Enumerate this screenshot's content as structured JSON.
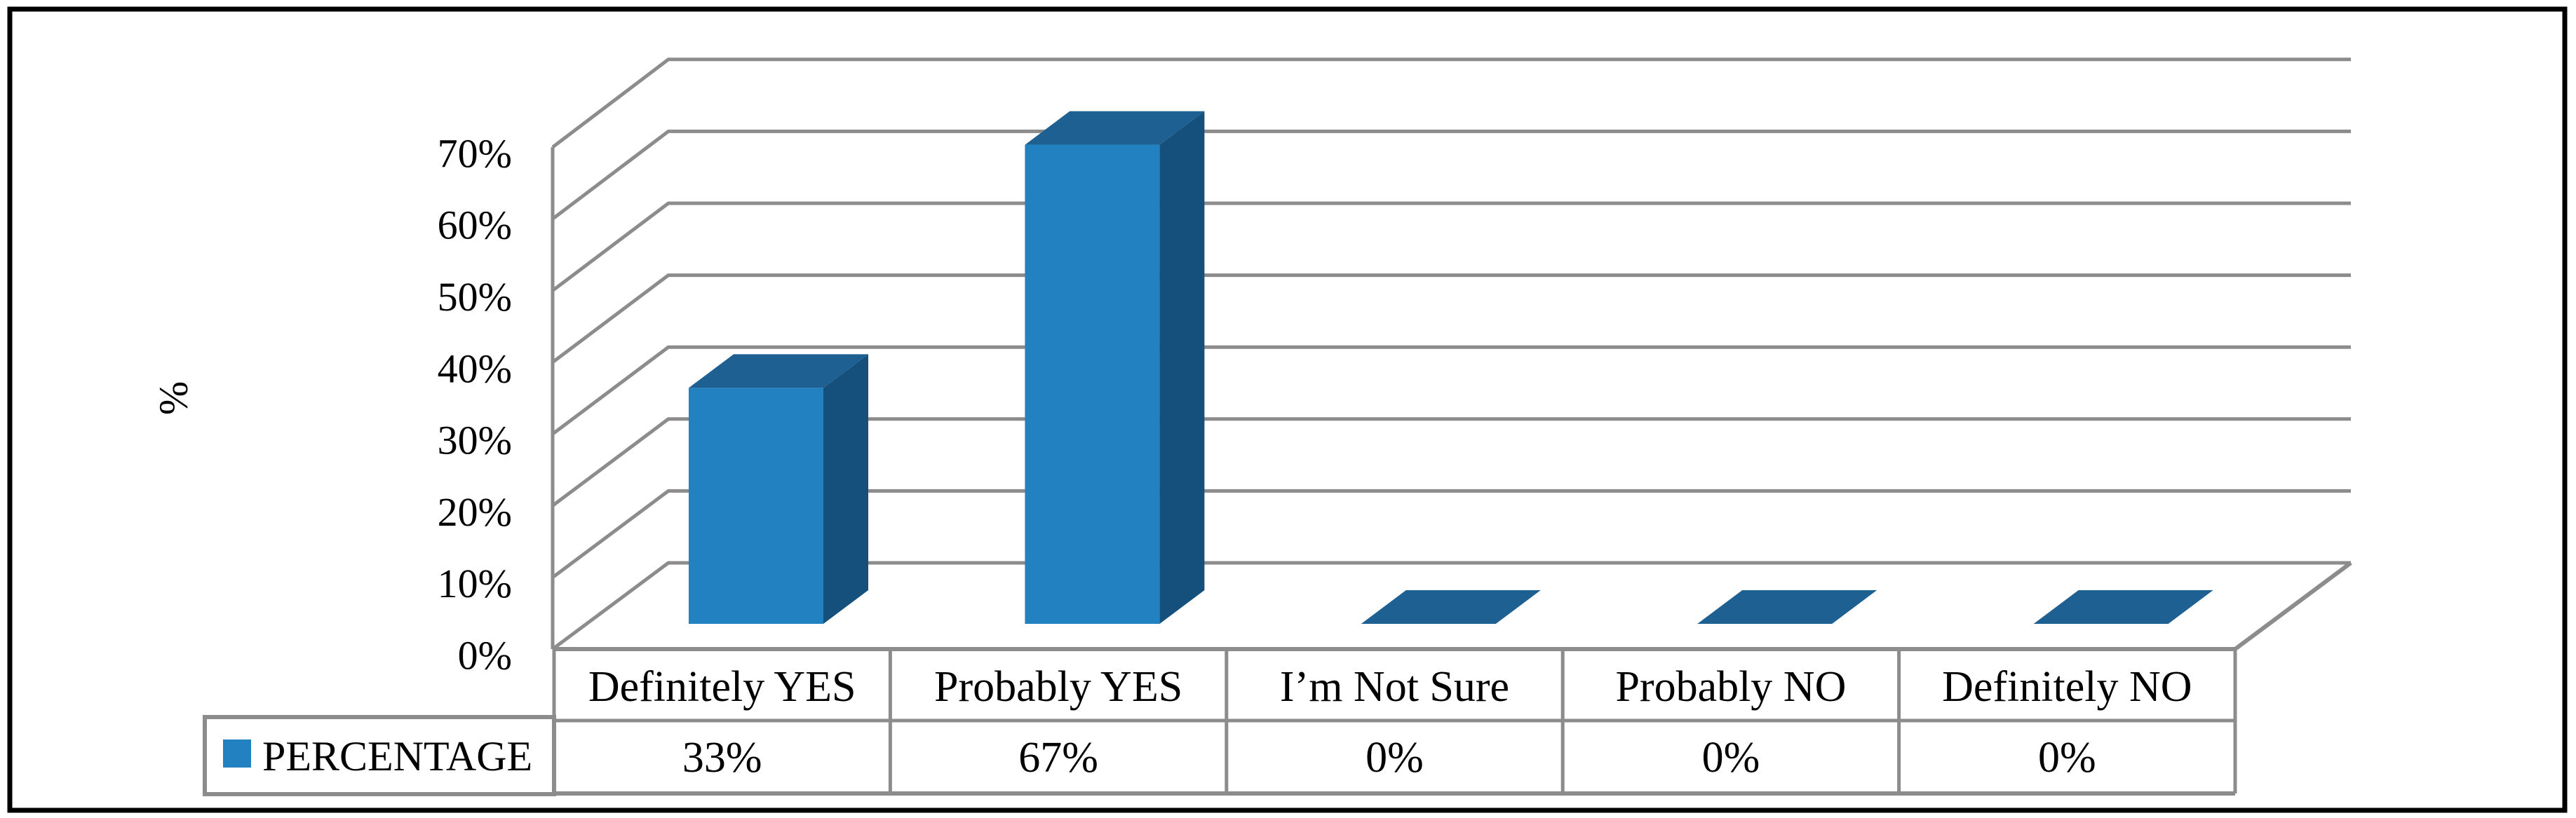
{
  "figure": {
    "background": "#ffffff",
    "border_color": "#000000"
  },
  "colors": {
    "bar_front": "#2181c1",
    "bar_top": "#1d6091",
    "bar_side": "#15507d",
    "grid": "#8c8c8c",
    "table_border": "#8c8c8c",
    "legend_marker": "#2181c1",
    "text": "#000000"
  },
  "chart_data": {
    "type": "bar",
    "variant": "3d-column",
    "title": "",
    "categories": [
      "Definitely YES",
      "Probably YES",
      "I’m Not Sure",
      "Probably NO",
      "Definitely NO"
    ],
    "series": [
      {
        "name": "PERCENTAGE",
        "values": [
          33,
          67,
          0,
          0,
          0
        ]
      }
    ],
    "data_labels": [
      "33%",
      "67%",
      "0%",
      "0%",
      "0%"
    ],
    "xlabel": "",
    "ylabel": "%",
    "ylim": [
      0,
      70
    ],
    "ytick_step": 10,
    "ytick_labels": [
      "0%",
      "10%",
      "20%",
      "30%",
      "40%",
      "50%",
      "60%",
      "70%"
    ],
    "grid": true,
    "legend_position": "bottom-left-table",
    "data_table_shown": true
  }
}
